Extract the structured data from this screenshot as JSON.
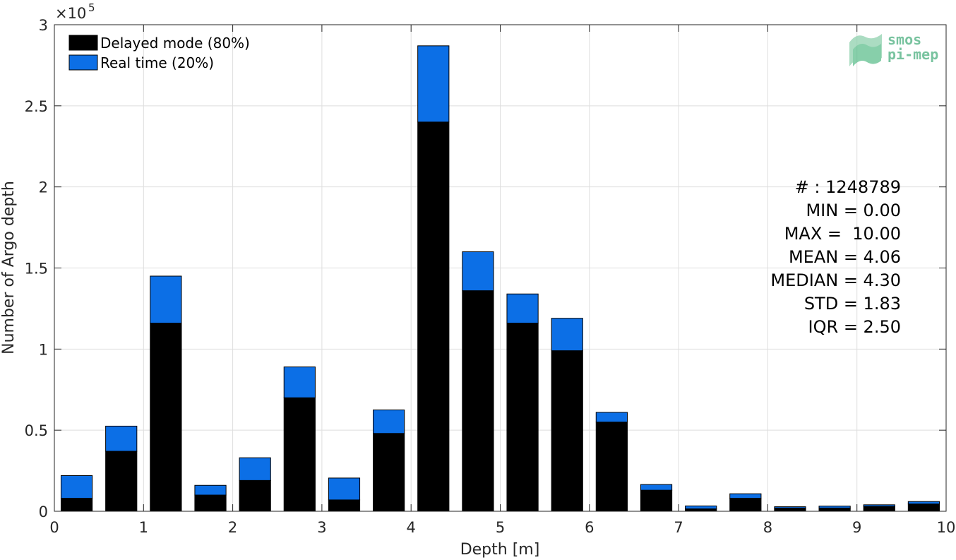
{
  "chart_data": {
    "type": "bar",
    "stacked": true,
    "title": "",
    "xlabel": "Depth [m]",
    "ylabel": "Number of Argo depth",
    "y_exponent_label": "×10",
    "y_exponent_power": "5",
    "xlim": [
      0,
      10
    ],
    "ylim": [
      0,
      3
    ],
    "x_ticks": [
      "0",
      "1",
      "2",
      "3",
      "4",
      "5",
      "6",
      "7",
      "8",
      "9",
      "10"
    ],
    "y_ticks": [
      "0",
      "0.5",
      "1",
      "1.5",
      "2",
      "2.5",
      "3"
    ],
    "grid": true,
    "legend_position": "top-left",
    "bin_width": 0.5,
    "x": [
      0.25,
      0.75,
      1.25,
      1.75,
      2.25,
      2.75,
      3.25,
      3.75,
      4.25,
      4.75,
      5.25,
      5.75,
      6.25,
      6.75,
      7.25,
      7.75,
      8.25,
      8.75,
      9.25,
      9.75
    ],
    "series": [
      {
        "name": "Delayed mode (80%)",
        "color": "#000000",
        "values": [
          0.08,
          0.37,
          1.16,
          0.1,
          0.19,
          0.7,
          0.07,
          0.48,
          2.4,
          1.36,
          1.16,
          0.99,
          0.55,
          0.13,
          0.015,
          0.08,
          0.02,
          0.02,
          0.03,
          0.045
        ]
      },
      {
        "name": "Real time (20%)",
        "color": "#0c6fe6",
        "values": [
          0.14,
          0.155,
          0.29,
          0.06,
          0.14,
          0.19,
          0.135,
          0.145,
          0.47,
          0.24,
          0.18,
          0.2,
          0.06,
          0.035,
          0.018,
          0.028,
          0.008,
          0.012,
          0.01,
          0.015
        ]
      }
    ],
    "stats": [
      "# : 1248789",
      "MIN = 0.00",
      "MAX =  10.00",
      "MEAN = 4.06",
      "MEDIAN = 4.30",
      "STD = 1.83",
      "IQR = 2.50"
    ]
  },
  "watermark": {
    "line1": "smos",
    "line2": "pi-mep",
    "color": "#4caf7f"
  }
}
